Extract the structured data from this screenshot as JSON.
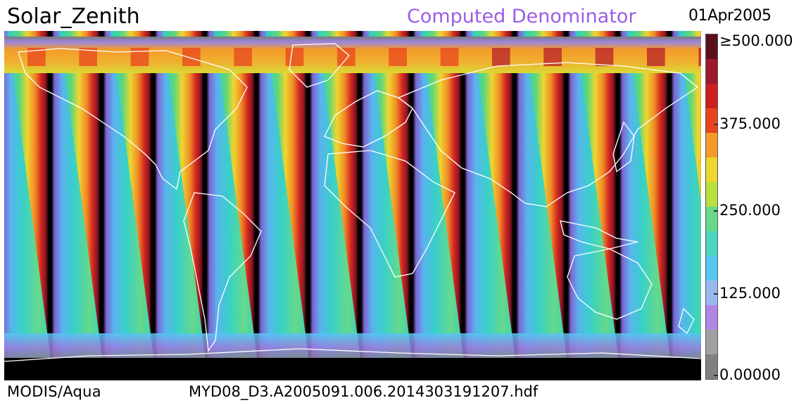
{
  "header": {
    "title": "Solar_Zenith",
    "subtitle": "Computed Denominator",
    "date": "01Apr2005"
  },
  "footer": {
    "instrument": "MODIS/Aqua",
    "filename": "MYD08_D3.A2005091.006.2014303191207.hdf"
  },
  "colorbar": {
    "labels": [
      "≥500.000",
      "375.000",
      "250.000",
      "125.000",
      "0.00000"
    ],
    "values": [
      500,
      375,
      250,
      125,
      0
    ],
    "colors": [
      "#808080",
      "#a0a0a0",
      "#b085e8",
      "#9ab8f0",
      "#55c8f2",
      "#4ad6c0",
      "#66d98a",
      "#b7e03e",
      "#eed630",
      "#f39c2a",
      "#e8451e",
      "#cc1f1f",
      "#9b1b2c",
      "#5a0f1a"
    ]
  },
  "map": {
    "band_count": 14,
    "land_outline_color": "#ffffff",
    "no_data_color": "#000000"
  }
}
